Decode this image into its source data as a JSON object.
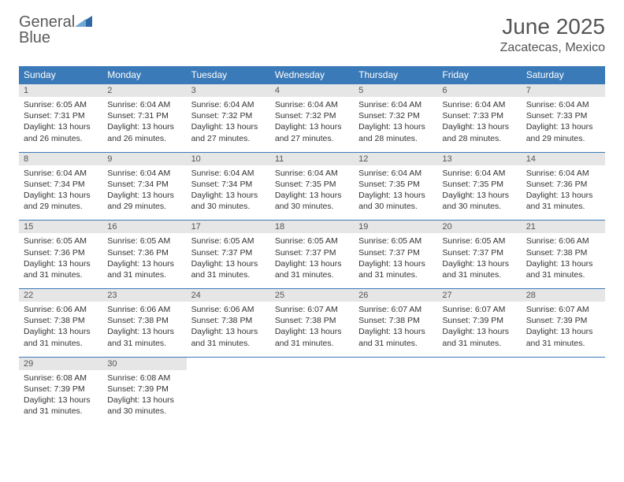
{
  "brand": {
    "word1": "General",
    "word2": "Blue"
  },
  "title": "June 2025",
  "location": "Zacatecas, Mexico",
  "colors": {
    "header_bg": "#3a7ab8",
    "header_text": "#ffffff",
    "daynum_bg": "#e6e6e6",
    "border": "#3a7ab8",
    "body_text": "#333333",
    "title_text": "#555555"
  },
  "weekdays": [
    "Sunday",
    "Monday",
    "Tuesday",
    "Wednesday",
    "Thursday",
    "Friday",
    "Saturday"
  ],
  "weeks": [
    [
      {
        "n": "1",
        "sr": "6:05 AM",
        "ss": "7:31 PM",
        "dl": "13 hours and 26 minutes."
      },
      {
        "n": "2",
        "sr": "6:04 AM",
        "ss": "7:31 PM",
        "dl": "13 hours and 26 minutes."
      },
      {
        "n": "3",
        "sr": "6:04 AM",
        "ss": "7:32 PM",
        "dl": "13 hours and 27 minutes."
      },
      {
        "n": "4",
        "sr": "6:04 AM",
        "ss": "7:32 PM",
        "dl": "13 hours and 27 minutes."
      },
      {
        "n": "5",
        "sr": "6:04 AM",
        "ss": "7:32 PM",
        "dl": "13 hours and 28 minutes."
      },
      {
        "n": "6",
        "sr": "6:04 AM",
        "ss": "7:33 PM",
        "dl": "13 hours and 28 minutes."
      },
      {
        "n": "7",
        "sr": "6:04 AM",
        "ss": "7:33 PM",
        "dl": "13 hours and 29 minutes."
      }
    ],
    [
      {
        "n": "8",
        "sr": "6:04 AM",
        "ss": "7:34 PM",
        "dl": "13 hours and 29 minutes."
      },
      {
        "n": "9",
        "sr": "6:04 AM",
        "ss": "7:34 PM",
        "dl": "13 hours and 29 minutes."
      },
      {
        "n": "10",
        "sr": "6:04 AM",
        "ss": "7:34 PM",
        "dl": "13 hours and 30 minutes."
      },
      {
        "n": "11",
        "sr": "6:04 AM",
        "ss": "7:35 PM",
        "dl": "13 hours and 30 minutes."
      },
      {
        "n": "12",
        "sr": "6:04 AM",
        "ss": "7:35 PM",
        "dl": "13 hours and 30 minutes."
      },
      {
        "n": "13",
        "sr": "6:04 AM",
        "ss": "7:35 PM",
        "dl": "13 hours and 30 minutes."
      },
      {
        "n": "14",
        "sr": "6:04 AM",
        "ss": "7:36 PM",
        "dl": "13 hours and 31 minutes."
      }
    ],
    [
      {
        "n": "15",
        "sr": "6:05 AM",
        "ss": "7:36 PM",
        "dl": "13 hours and 31 minutes."
      },
      {
        "n": "16",
        "sr": "6:05 AM",
        "ss": "7:36 PM",
        "dl": "13 hours and 31 minutes."
      },
      {
        "n": "17",
        "sr": "6:05 AM",
        "ss": "7:37 PM",
        "dl": "13 hours and 31 minutes."
      },
      {
        "n": "18",
        "sr": "6:05 AM",
        "ss": "7:37 PM",
        "dl": "13 hours and 31 minutes."
      },
      {
        "n": "19",
        "sr": "6:05 AM",
        "ss": "7:37 PM",
        "dl": "13 hours and 31 minutes."
      },
      {
        "n": "20",
        "sr": "6:05 AM",
        "ss": "7:37 PM",
        "dl": "13 hours and 31 minutes."
      },
      {
        "n": "21",
        "sr": "6:06 AM",
        "ss": "7:38 PM",
        "dl": "13 hours and 31 minutes."
      }
    ],
    [
      {
        "n": "22",
        "sr": "6:06 AM",
        "ss": "7:38 PM",
        "dl": "13 hours and 31 minutes."
      },
      {
        "n": "23",
        "sr": "6:06 AM",
        "ss": "7:38 PM",
        "dl": "13 hours and 31 minutes."
      },
      {
        "n": "24",
        "sr": "6:06 AM",
        "ss": "7:38 PM",
        "dl": "13 hours and 31 minutes."
      },
      {
        "n": "25",
        "sr": "6:07 AM",
        "ss": "7:38 PM",
        "dl": "13 hours and 31 minutes."
      },
      {
        "n": "26",
        "sr": "6:07 AM",
        "ss": "7:38 PM",
        "dl": "13 hours and 31 minutes."
      },
      {
        "n": "27",
        "sr": "6:07 AM",
        "ss": "7:39 PM",
        "dl": "13 hours and 31 minutes."
      },
      {
        "n": "28",
        "sr": "6:07 AM",
        "ss": "7:39 PM",
        "dl": "13 hours and 31 minutes."
      }
    ],
    [
      {
        "n": "29",
        "sr": "6:08 AM",
        "ss": "7:39 PM",
        "dl": "13 hours and 31 minutes."
      },
      {
        "n": "30",
        "sr": "6:08 AM",
        "ss": "7:39 PM",
        "dl": "13 hours and 30 minutes."
      },
      null,
      null,
      null,
      null,
      null
    ]
  ],
  "labels": {
    "sunrise": "Sunrise:",
    "sunset": "Sunset:",
    "daylight": "Daylight:"
  }
}
